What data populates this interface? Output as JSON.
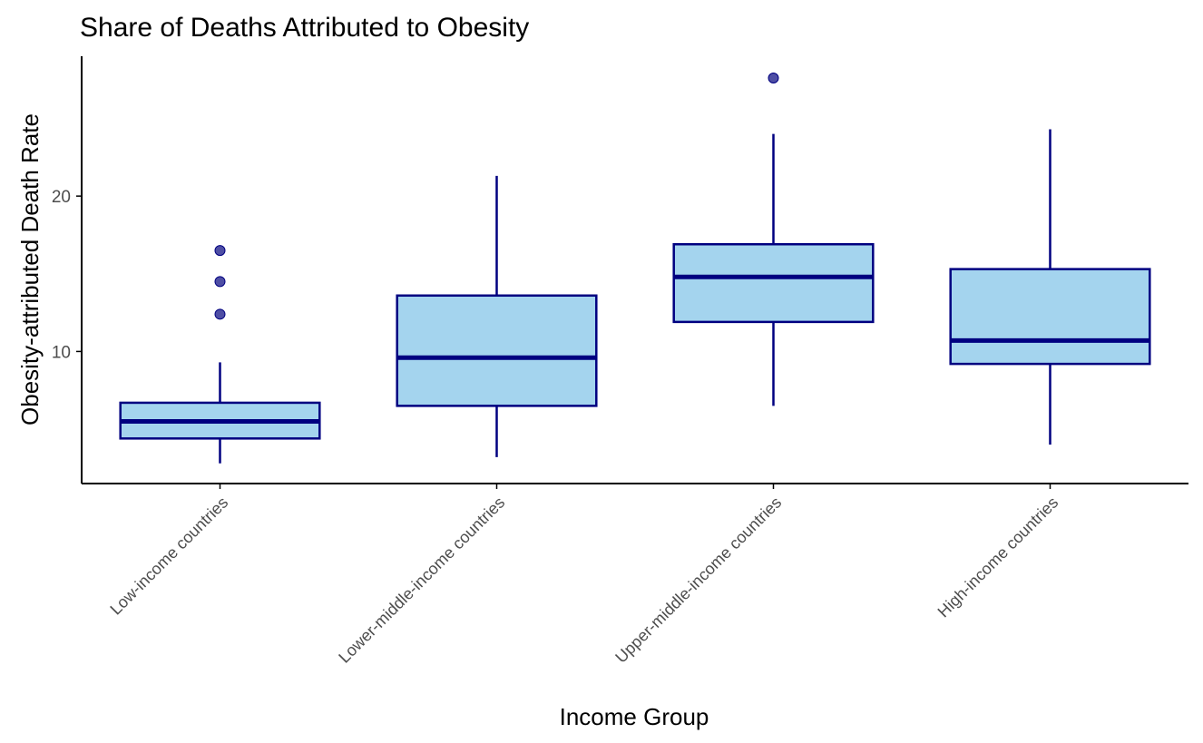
{
  "chart_data": {
    "type": "boxplot",
    "title": "Share of Deaths Attributed to Obesity",
    "xlabel": "Income Group",
    "ylabel": "Obesity-attributed Death Rate",
    "categories": [
      "Low-income countries",
      "Lower-middle-income countries",
      "Upper-middle-income countries",
      "High-income countries"
    ],
    "yticks": [
      10,
      20
    ],
    "ylim": [
      1.5,
      29.0
    ],
    "grid": false,
    "boxes": [
      {
        "category": "Low-income countries",
        "whisker_low": 2.8,
        "q1": 4.4,
        "median": 5.5,
        "q3": 6.7,
        "whisker_high": 9.3,
        "outliers": [
          12.4,
          14.5,
          16.5
        ]
      },
      {
        "category": "Lower-middle-income countries",
        "whisker_low": 3.2,
        "q1": 6.5,
        "median": 9.6,
        "q3": 13.6,
        "whisker_high": 21.3,
        "outliers": []
      },
      {
        "category": "Upper-middle-income countries",
        "whisker_low": 6.5,
        "q1": 11.9,
        "median": 14.8,
        "q3": 16.9,
        "whisker_high": 24.0,
        "outliers": [
          27.6
        ]
      },
      {
        "category": "High-income countries",
        "whisker_low": 4.0,
        "q1": 9.2,
        "median": 10.7,
        "q3": 15.3,
        "whisker_high": 24.3,
        "outliers": []
      }
    ],
    "colors": {
      "box_fill": "#a4d4ee",
      "box_stroke": "#000080",
      "outlier": "#3b3b9a",
      "axis": "#000000"
    }
  }
}
